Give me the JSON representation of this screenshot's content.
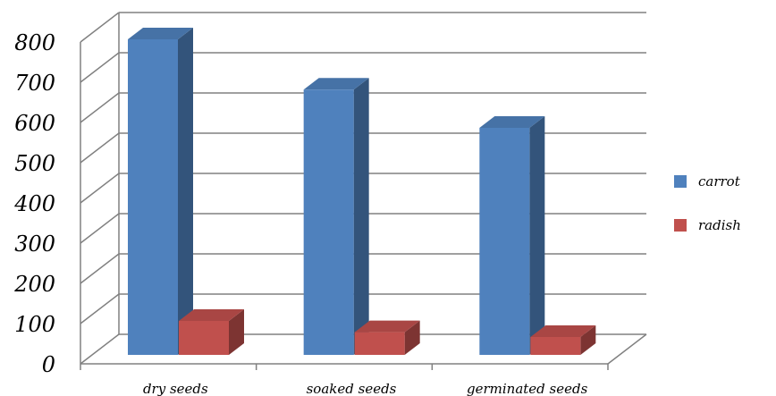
{
  "chart_data": {
    "type": "bar",
    "categories": [
      "dry seeds",
      "soaked seeds",
      "germinated seeds"
    ],
    "series": [
      {
        "name": "carrot",
        "values": [
          800,
          675,
          580
        ],
        "color": "#4f81bd"
      },
      {
        "name": "radish",
        "values": [
          100,
          72,
          60
        ],
        "color": "#c0504d"
      }
    ],
    "ylim": [
      0,
      800
    ],
    "yticks": [
      "0",
      "100",
      "200",
      "300",
      "400",
      "500",
      "600",
      "700",
      "800"
    ],
    "grid": true,
    "legend_position": "right",
    "style": "3d-clustered-column"
  }
}
